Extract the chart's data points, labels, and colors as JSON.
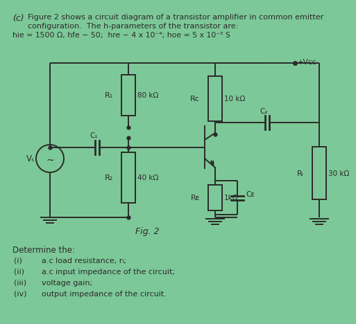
{
  "bg_color": "#7dc898",
  "text_color": "#2a2a2a",
  "title_label": "(c)",
  "line1": "Figure 2 shows a circuit diagram of a transistor amplifier in common emitter",
  "line2": "configuration.  The h-parameters of the transistor are:",
  "line3": "hie = 1500 Ω, hfe − 50;  hre − 4 x 10⁻⁴; hoe = 5 x 10⁻⁵ S",
  "fig_label": "Fig. 2",
  "determine": "Determine the:",
  "items": [
    [
      "(i)",
      "a.c load resistance, rₗ;"
    ],
    [
      "(ii)",
      "a.c input impedance of the circuit;"
    ],
    [
      "(iii)",
      "voltage gain;"
    ],
    [
      "(iv)",
      "output impedance of the circuit."
    ]
  ],
  "R1_label": "R₁",
  "R1_val": "80 kΩ",
  "R2_label": "R₂",
  "R2_val": "40 kΩ",
  "RC_label": "Rᴄ",
  "RC_val": "10 kΩ",
  "RE_label": "Rᴇ",
  "RE_val": "1kΩ",
  "RL_label": "Rₗ",
  "RL_val": "30 kΩ",
  "C1_label": "C₁",
  "C2_label": "C₂",
  "CE_label": "Cᴇ",
  "Vcc_label": "+Vᴄᴄ",
  "Vs_label": "Vₛ"
}
